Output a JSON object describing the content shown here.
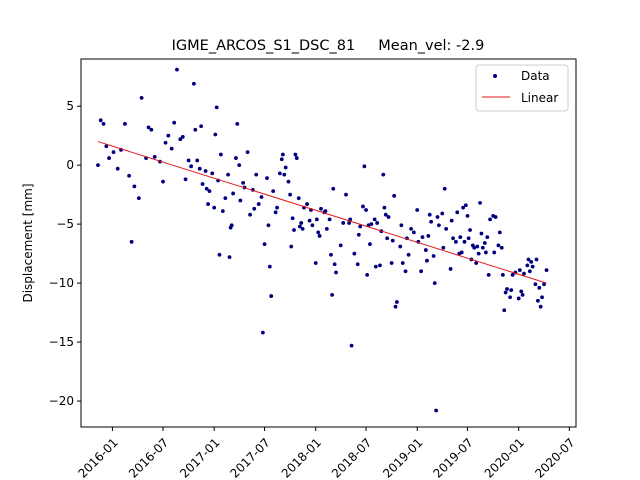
{
  "chart_data": {
    "type": "scatter",
    "title": "IGME_ARCOS_S1_DSC_81     Mean_vel: -2.9",
    "xlabel": "",
    "ylabel": "Displacement [mm]",
    "xlim": [
      "2015-09-10",
      "2020-07-25"
    ],
    "ylim": [
      -22.2,
      9.0
    ],
    "x_ticks": [
      "2016-01",
      "2016-07",
      "2017-01",
      "2017-07",
      "2018-01",
      "2018-07",
      "2019-01",
      "2019-07",
      "2020-01",
      "2020-07"
    ],
    "y_ticks": [
      5,
      0,
      -5,
      -10,
      -15,
      -20
    ],
    "y_tick_labels": [
      "5",
      "0",
      "−5",
      "−10",
      "−15",
      "−20"
    ],
    "grid": false,
    "legend": {
      "placement": "top-right",
      "entries": [
        "Data",
        "Linear"
      ]
    },
    "colors": {
      "data": "#00007f",
      "linear": "#e31a1c"
    },
    "series": [
      {
        "name": "Data",
        "kind": "scatter",
        "points": [
          [
            "2015-11-10",
            0.0
          ],
          [
            "2015-11-20",
            3.8
          ],
          [
            "2015-11-30",
            3.5
          ],
          [
            "2015-12-10",
            1.6
          ],
          [
            "2015-12-20",
            0.6
          ],
          [
            "2016-01-05",
            1.1
          ],
          [
            "2016-01-20",
            -0.3
          ],
          [
            "2016-02-01",
            1.3
          ],
          [
            "2016-02-15",
            3.5
          ],
          [
            "2016-03-01",
            -0.9
          ],
          [
            "2016-03-10",
            -6.5
          ],
          [
            "2016-03-20",
            -1.8
          ],
          [
            "2016-04-05",
            -2.8
          ],
          [
            "2016-04-15",
            5.7
          ],
          [
            "2016-05-01",
            0.6
          ],
          [
            "2016-05-10",
            3.2
          ],
          [
            "2016-05-20",
            3.0
          ],
          [
            "2016-06-01",
            0.7
          ],
          [
            "2016-06-20",
            0.3
          ],
          [
            "2016-07-01",
            -1.4
          ],
          [
            "2016-07-10",
            1.9
          ],
          [
            "2016-07-20",
            2.5
          ],
          [
            "2016-08-01",
            1.4
          ],
          [
            "2016-08-10",
            3.6
          ],
          [
            "2016-08-20",
            8.1
          ],
          [
            "2016-09-01",
            2.2
          ],
          [
            "2016-09-10",
            2.4
          ],
          [
            "2016-09-20",
            -1.2
          ],
          [
            "2016-10-01",
            0.4
          ],
          [
            "2016-10-10",
            -0.1
          ],
          [
            "2016-10-20",
            6.9
          ],
          [
            "2016-10-25",
            3.0
          ],
          [
            "2016-11-01",
            0.4
          ],
          [
            "2016-11-10",
            -0.3
          ],
          [
            "2016-11-15",
            3.3
          ],
          [
            "2016-11-20",
            -1.6
          ],
          [
            "2016-12-01",
            -0.5
          ],
          [
            "2016-12-05",
            -2.0
          ],
          [
            "2016-12-10",
            -3.3
          ],
          [
            "2016-12-15",
            -2.2
          ],
          [
            "2016-12-25",
            -0.7
          ],
          [
            "2017-01-01",
            -3.6
          ],
          [
            "2017-01-05",
            2.6
          ],
          [
            "2017-01-10",
            4.9
          ],
          [
            "2017-01-15",
            -1.3
          ],
          [
            "2017-01-20",
            -7.6
          ],
          [
            "2017-01-25",
            0.9
          ],
          [
            "2017-02-01",
            -3.9
          ],
          [
            "2017-02-10",
            -2.8
          ],
          [
            "2017-02-20",
            -0.8
          ],
          [
            "2017-02-25",
            -7.8
          ],
          [
            "2017-03-01",
            -5.3
          ],
          [
            "2017-03-05",
            -5.1
          ],
          [
            "2017-03-10",
            -2.4
          ],
          [
            "2017-03-20",
            0.6
          ],
          [
            "2017-03-25",
            3.5
          ],
          [
            "2017-04-01",
            0.0
          ],
          [
            "2017-04-05",
            -3.0
          ],
          [
            "2017-04-15",
            -1.5
          ],
          [
            "2017-04-20",
            -1.9
          ],
          [
            "2017-05-01",
            1.1
          ],
          [
            "2017-05-10",
            -4.2
          ],
          [
            "2017-05-20",
            -2.1
          ],
          [
            "2017-05-25",
            -3.7
          ],
          [
            "2017-06-01",
            -0.8
          ],
          [
            "2017-06-10",
            -3.3
          ],
          [
            "2017-06-20",
            -2.7
          ],
          [
            "2017-06-25",
            -14.2
          ],
          [
            "2017-07-01",
            -6.7
          ],
          [
            "2017-07-10",
            -1.1
          ],
          [
            "2017-07-15",
            -5.1
          ],
          [
            "2017-07-20",
            -8.6
          ],
          [
            "2017-07-25",
            -11.1
          ],
          [
            "2017-08-01",
            -2.2
          ],
          [
            "2017-08-10",
            -4.0
          ],
          [
            "2017-08-15",
            -3.6
          ],
          [
            "2017-08-25",
            -0.7
          ],
          [
            "2017-09-01",
            0.5
          ],
          [
            "2017-09-05",
            0.9
          ],
          [
            "2017-09-10",
            -0.8
          ],
          [
            "2017-09-15",
            -0.2
          ],
          [
            "2017-09-25",
            -1.4
          ],
          [
            "2017-10-01",
            -2.5
          ],
          [
            "2017-10-05",
            -6.9
          ],
          [
            "2017-10-10",
            -4.5
          ],
          [
            "2017-10-15",
            -5.5
          ],
          [
            "2017-10-20",
            0.9
          ],
          [
            "2017-10-25",
            0.6
          ],
          [
            "2017-11-01",
            -2.8
          ],
          [
            "2017-11-05",
            -5.2
          ],
          [
            "2017-11-10",
            -4.9
          ],
          [
            "2017-11-15",
            -5.4
          ],
          [
            "2017-11-20",
            -3.6
          ],
          [
            "2017-12-01",
            -3.3
          ],
          [
            "2017-12-10",
            -4.7
          ],
          [
            "2017-12-15",
            -3.8
          ],
          [
            "2017-12-20",
            -5.1
          ],
          [
            "2018-01-01",
            -8.3
          ],
          [
            "2018-01-05",
            -4.6
          ],
          [
            "2018-01-10",
            -5.7
          ],
          [
            "2018-01-15",
            -6.0
          ],
          [
            "2018-01-20",
            -3.7
          ],
          [
            "2018-02-01",
            -4.0
          ],
          [
            "2018-02-05",
            -3.9
          ],
          [
            "2018-02-10",
            -5.4
          ],
          [
            "2018-02-20",
            -4.6
          ],
          [
            "2018-02-25",
            -7.6
          ],
          [
            "2018-03-01",
            -11.0
          ],
          [
            "2018-03-05",
            -2.0
          ],
          [
            "2018-03-10",
            -8.4
          ],
          [
            "2018-03-15",
            -9.1
          ],
          [
            "2018-04-01",
            -6.8
          ],
          [
            "2018-04-10",
            -4.9
          ],
          [
            "2018-04-20",
            -2.5
          ],
          [
            "2018-05-01",
            -4.9
          ],
          [
            "2018-05-05",
            -4.6
          ],
          [
            "2018-05-10",
            -15.3
          ],
          [
            "2018-05-20",
            -7.5
          ],
          [
            "2018-06-01",
            -8.4
          ],
          [
            "2018-06-05",
            -5.9
          ],
          [
            "2018-06-10",
            -5.2
          ],
          [
            "2018-06-20",
            -3.5
          ],
          [
            "2018-06-25",
            -0.1
          ],
          [
            "2018-07-01",
            -3.8
          ],
          [
            "2018-07-05",
            -9.3
          ],
          [
            "2018-07-10",
            -5.1
          ],
          [
            "2018-07-15",
            -6.7
          ],
          [
            "2018-07-20",
            -5.0
          ],
          [
            "2018-08-01",
            -4.6
          ],
          [
            "2018-08-05",
            -8.6
          ],
          [
            "2018-08-10",
            -4.9
          ],
          [
            "2018-08-20",
            -8.5
          ],
          [
            "2018-08-25",
            -5.6
          ],
          [
            "2018-09-01",
            -0.8
          ],
          [
            "2018-09-05",
            -3.6
          ],
          [
            "2018-09-10",
            -4.2
          ],
          [
            "2018-09-15",
            -6.2
          ],
          [
            "2018-09-20",
            -4.4
          ],
          [
            "2018-10-01",
            -8.3
          ],
          [
            "2018-10-05",
            -6.4
          ],
          [
            "2018-10-10",
            -2.6
          ],
          [
            "2018-10-15",
            -12.0
          ],
          [
            "2018-10-20",
            -11.6
          ],
          [
            "2018-11-01",
            -6.9
          ],
          [
            "2018-11-05",
            -5.1
          ],
          [
            "2018-11-10",
            -8.3
          ],
          [
            "2018-11-20",
            -9.0
          ],
          [
            "2018-11-25",
            -6.2
          ],
          [
            "2018-12-01",
            -7.6
          ],
          [
            "2018-12-10",
            -5.4
          ],
          [
            "2018-12-20",
            -5.7
          ],
          [
            "2019-01-01",
            -3.8
          ],
          [
            "2019-01-05",
            -6.5
          ],
          [
            "2019-01-15",
            -9.0
          ],
          [
            "2019-01-20",
            -6.1
          ],
          [
            "2019-02-01",
            -7.2
          ],
          [
            "2019-02-05",
            -8.1
          ],
          [
            "2019-02-10",
            -6.0
          ],
          [
            "2019-02-15",
            -4.2
          ],
          [
            "2019-02-20",
            -4.8
          ],
          [
            "2019-03-01",
            -7.7
          ],
          [
            "2019-03-05",
            -10.0
          ],
          [
            "2019-03-10",
            -20.8
          ],
          [
            "2019-03-15",
            -4.4
          ],
          [
            "2019-03-20",
            -5.1
          ],
          [
            "2019-04-01",
            -4.1
          ],
          [
            "2019-04-05",
            -7.0
          ],
          [
            "2019-04-10",
            -2.0
          ],
          [
            "2019-04-15",
            -5.4
          ],
          [
            "2019-05-01",
            -8.8
          ],
          [
            "2019-05-05",
            -4.7
          ],
          [
            "2019-05-10",
            -6.2
          ],
          [
            "2019-05-20",
            -6.5
          ],
          [
            "2019-05-25",
            -4.0
          ],
          [
            "2019-06-01",
            -7.5
          ],
          [
            "2019-06-05",
            -6.1
          ],
          [
            "2019-06-10",
            -7.4
          ],
          [
            "2019-06-15",
            -3.6
          ],
          [
            "2019-06-20",
            -6.5
          ],
          [
            "2019-06-25",
            -3.4
          ],
          [
            "2019-07-01",
            -4.3
          ],
          [
            "2019-07-05",
            -6.2
          ],
          [
            "2019-07-10",
            -5.5
          ],
          [
            "2019-07-15",
            -8.0
          ],
          [
            "2019-07-20",
            -6.8
          ],
          [
            "2019-07-25",
            -7.0
          ],
          [
            "2019-08-01",
            -8.3
          ],
          [
            "2019-08-05",
            -6.9
          ],
          [
            "2019-08-10",
            -7.5
          ],
          [
            "2019-08-15",
            -3.2
          ],
          [
            "2019-08-20",
            -5.8
          ],
          [
            "2019-08-25",
            -7.0
          ],
          [
            "2019-09-01",
            -6.6
          ],
          [
            "2019-09-05",
            -7.4
          ],
          [
            "2019-09-10",
            -6.1
          ],
          [
            "2019-09-15",
            -9.3
          ],
          [
            "2019-09-20",
            -4.6
          ],
          [
            "2019-10-01",
            -4.3
          ],
          [
            "2019-10-05",
            -7.4
          ],
          [
            "2019-10-10",
            -4.4
          ],
          [
            "2019-10-20",
            -6.8
          ],
          [
            "2019-10-25",
            -5.7
          ],
          [
            "2019-11-01",
            -7.0
          ],
          [
            "2019-11-05",
            -9.3
          ],
          [
            "2019-11-10",
            -12.3
          ],
          [
            "2019-11-15",
            -10.8
          ],
          [
            "2019-11-20",
            -10.5
          ],
          [
            "2019-12-01",
            -11.2
          ],
          [
            "2019-12-05",
            -10.6
          ],
          [
            "2019-12-10",
            -9.3
          ],
          [
            "2019-12-20",
            -9.1
          ],
          [
            "2020-01-01",
            -11.3
          ],
          [
            "2020-01-05",
            -8.9
          ],
          [
            "2020-01-10",
            -10.7
          ],
          [
            "2020-01-15",
            -11.0
          ],
          [
            "2020-01-20",
            -9.2
          ],
          [
            "2020-02-01",
            -8.5
          ],
          [
            "2020-02-05",
            -8.0
          ],
          [
            "2020-02-10",
            -9.0
          ],
          [
            "2020-02-15",
            -8.2
          ],
          [
            "2020-02-20",
            -8.6
          ],
          [
            "2020-03-01",
            -10.1
          ],
          [
            "2020-03-05",
            -8.0
          ],
          [
            "2020-03-10",
            -11.5
          ],
          [
            "2020-03-15",
            -10.4
          ],
          [
            "2020-03-20",
            -12.0
          ],
          [
            "2020-03-25",
            -11.2
          ],
          [
            "2020-04-01",
            -10.1
          ],
          [
            "2020-04-10",
            -8.9
          ]
        ]
      },
      {
        "name": "Linear",
        "kind": "line",
        "points": [
          [
            "2015-11-10",
            2.0
          ],
          [
            "2020-04-10",
            -10.0
          ]
        ]
      }
    ]
  }
}
